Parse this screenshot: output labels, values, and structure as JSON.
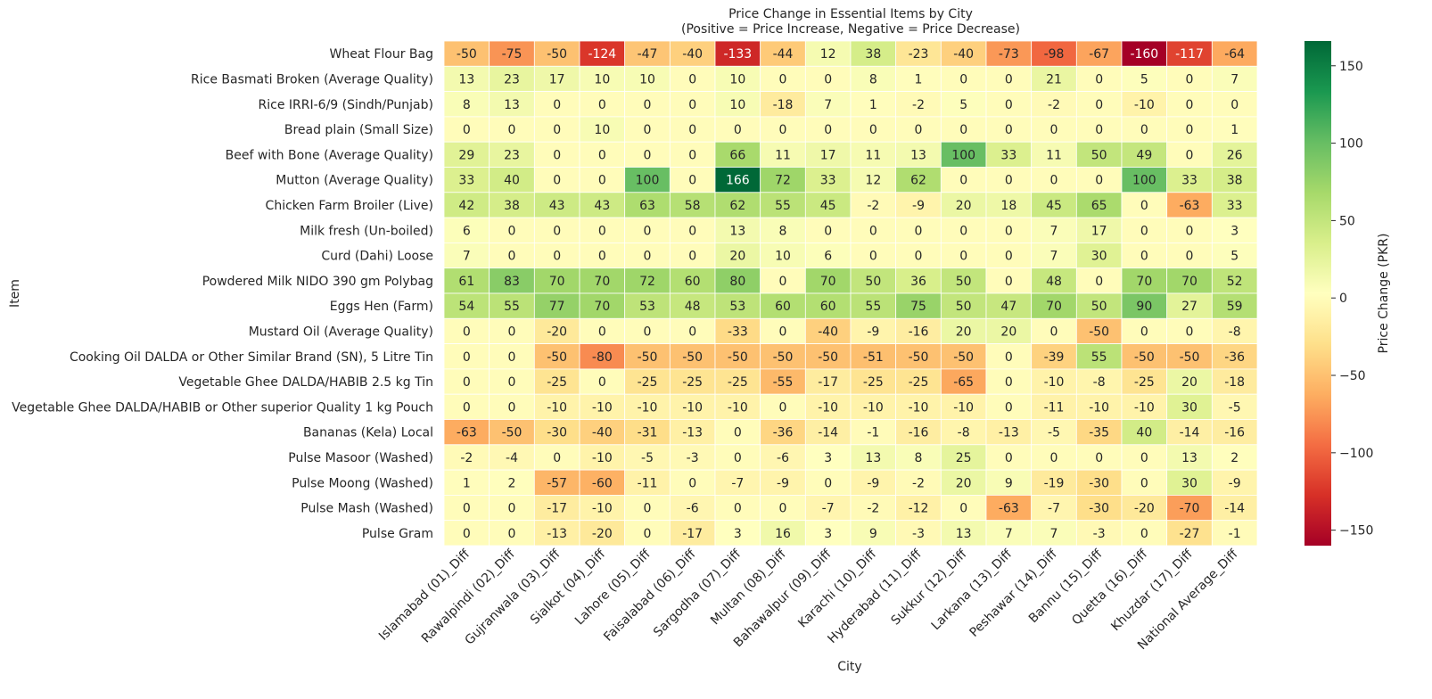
{
  "chart_data": {
    "type": "heatmap",
    "title": "Price Change in Essential Items by City",
    "subtitle": "(Positive = Price Increase, Negative = Price Decrease)",
    "xlabel": "City",
    "ylabel": "Item",
    "colorbar_label": "Price Change (PKR)",
    "colorbar_ticks": [
      150,
      100,
      50,
      0,
      -50,
      -100,
      -150
    ],
    "color_range": [
      -160,
      166
    ],
    "colormap": "RdYlGn",
    "columns": [
      "Islamabad (01)_Diff",
      "Rawalpindi (02)_Diff",
      "Gujranwala (03)_Diff",
      "Sialkot (04)_Diff",
      "Lahore (05)_Diff",
      "Faisalabad (06)_Diff",
      "Sargodha (07)_Diff",
      "Multan (08)_Diff",
      "Bahawalpur (09)_Diff",
      "Karachi (10)_Diff",
      "Hyderabad (11)_Diff",
      "Sukkur (12)_Diff",
      "Larkana (13)_Diff",
      "Peshawar (14)_Diff",
      "Bannu (15)_Diff",
      "Quetta (16)_Diff",
      "Khuzdar (17)_Diff",
      "National Average_Diff"
    ],
    "rows": [
      "Wheat Flour Bag",
      "Rice Basmati Broken (Average Quality)",
      "Rice IRRI-6/9 (Sindh/Punjab)",
      "Bread plain (Small Size)",
      "Beef with Bone (Average Quality)",
      "Mutton (Average Quality)",
      "Chicken Farm Broiler (Live)",
      "Milk fresh (Un-boiled)",
      "Curd (Dahi) Loose",
      "Powdered Milk NIDO 390 gm Polybag",
      "Eggs Hen (Farm)",
      "Mustard Oil (Average Quality)",
      "Cooking Oil DALDA or Other Similar Brand (SN), 5 Litre Tin",
      "Vegetable Ghee DALDA/HABIB 2.5 kg Tin",
      "Vegetable Ghee DALDA/HABIB or Other superior Quality 1 kg Pouch",
      "Bananas (Kela) Local",
      "Pulse Masoor (Washed)",
      "Pulse Moong (Washed)",
      "Pulse Mash (Washed)",
      "Pulse Gram"
    ],
    "values": [
      [
        -50,
        -75,
        -50,
        -124,
        -47,
        -40,
        -133,
        -44,
        12,
        38,
        -23,
        -40,
        -73,
        -98,
        -67,
        -160,
        -117,
        -64
      ],
      [
        13,
        23,
        17,
        10,
        10,
        0,
        10,
        0,
        0,
        8,
        1,
        0,
        0,
        21,
        0,
        5,
        0,
        7
      ],
      [
        8,
        13,
        0,
        0,
        0,
        0,
        10,
        -18,
        7,
        1,
        -2,
        5,
        0,
        -2,
        0,
        -10,
        0,
        0
      ],
      [
        0,
        0,
        0,
        10,
        0,
        0,
        0,
        0,
        0,
        0,
        0,
        0,
        0,
        0,
        0,
        0,
        0,
        1
      ],
      [
        29,
        23,
        0,
        0,
        0,
        0,
        66,
        11,
        17,
        11,
        13,
        100,
        33,
        11,
        50,
        49,
        0,
        26
      ],
      [
        33,
        40,
        0,
        0,
        100,
        0,
        166,
        72,
        33,
        12,
        62,
        0,
        0,
        0,
        0,
        100,
        33,
        38
      ],
      [
        42,
        38,
        43,
        43,
        63,
        58,
        62,
        55,
        45,
        -2,
        -9,
        20,
        18,
        45,
        65,
        0,
        -63,
        33
      ],
      [
        6,
        0,
        0,
        0,
        0,
        0,
        13,
        8,
        0,
        0,
        0,
        0,
        0,
        7,
        17,
        0,
        0,
        3
      ],
      [
        7,
        0,
        0,
        0,
        0,
        0,
        20,
        10,
        6,
        0,
        0,
        0,
        0,
        7,
        30,
        0,
        0,
        5
      ],
      [
        61,
        83,
        70,
        70,
        72,
        60,
        80,
        0,
        70,
        50,
        36,
        50,
        0,
        48,
        0,
        70,
        70,
        52
      ],
      [
        54,
        55,
        77,
        70,
        53,
        48,
        53,
        60,
        60,
        55,
        75,
        50,
        47,
        70,
        50,
        90,
        27,
        59
      ],
      [
        0,
        0,
        -20,
        0,
        0,
        0,
        -33,
        0,
        -40,
        -9,
        -16,
        20,
        20,
        0,
        -50,
        0,
        0,
        -8
      ],
      [
        0,
        0,
        -50,
        -80,
        -50,
        -50,
        -50,
        -50,
        -50,
        -51,
        -50,
        -50,
        0,
        -39,
        55,
        -50,
        -50,
        -36
      ],
      [
        0,
        0,
        -25,
        0,
        -25,
        -25,
        -25,
        -55,
        -17,
        -25,
        -25,
        -65,
        0,
        -10,
        -8,
        -25,
        20,
        -18
      ],
      [
        0,
        0,
        -10,
        -10,
        -10,
        -10,
        -10,
        0,
        -10,
        -10,
        -10,
        -10,
        0,
        -11,
        -10,
        -10,
        30,
        -5
      ],
      [
        -63,
        -50,
        -30,
        -40,
        -31,
        -13,
        0,
        -36,
        -14,
        -1,
        -16,
        -8,
        -13,
        -5,
        -35,
        40,
        -14,
        -16
      ],
      [
        -2,
        -4,
        0,
        -10,
        -5,
        -3,
        0,
        -6,
        3,
        13,
        8,
        25,
        0,
        0,
        0,
        0,
        13,
        2
      ],
      [
        1,
        2,
        -57,
        -60,
        -11,
        0,
        -7,
        -9,
        0,
        -9,
        -2,
        20,
        9,
        -19,
        -30,
        0,
        30,
        -9
      ],
      [
        0,
        0,
        -17,
        -10,
        0,
        -6,
        0,
        0,
        -7,
        -2,
        -12,
        0,
        -63,
        -7,
        -30,
        -20,
        -70,
        -14
      ],
      [
        0,
        0,
        -13,
        -20,
        0,
        -17,
        3,
        16,
        3,
        9,
        -3,
        13,
        7,
        7,
        -3,
        0,
        -27,
        -1
      ]
    ]
  }
}
